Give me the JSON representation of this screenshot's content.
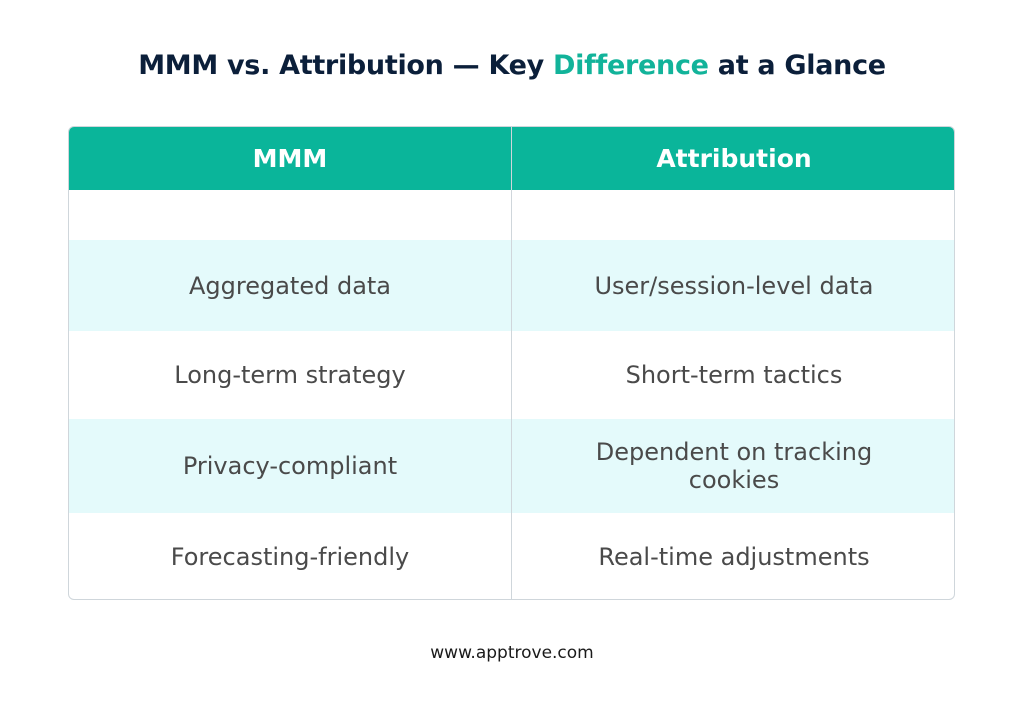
{
  "title": {
    "part1": "MMM vs. Attribution — Key ",
    "accent": "Difference",
    "part2": " at a Glance"
  },
  "colors": {
    "accent": "#12b39a",
    "header_bg": "#0ab59a",
    "row_shade": "#e4fafb",
    "title": "#0b1f3a"
  },
  "table": {
    "headers": [
      "MMM",
      "Attribution"
    ],
    "rows": [
      [
        "",
        ""
      ],
      [
        "Aggregated data",
        "User/session-level data"
      ],
      [
        "Long-term strategy",
        "Short-term tactics"
      ],
      [
        "Privacy-compliant",
        "Dependent on tracking cookies"
      ],
      [
        "Forecasting-friendly",
        "Real-time adjustments"
      ]
    ]
  },
  "footer": {
    "url": "www.apptrove.com"
  }
}
